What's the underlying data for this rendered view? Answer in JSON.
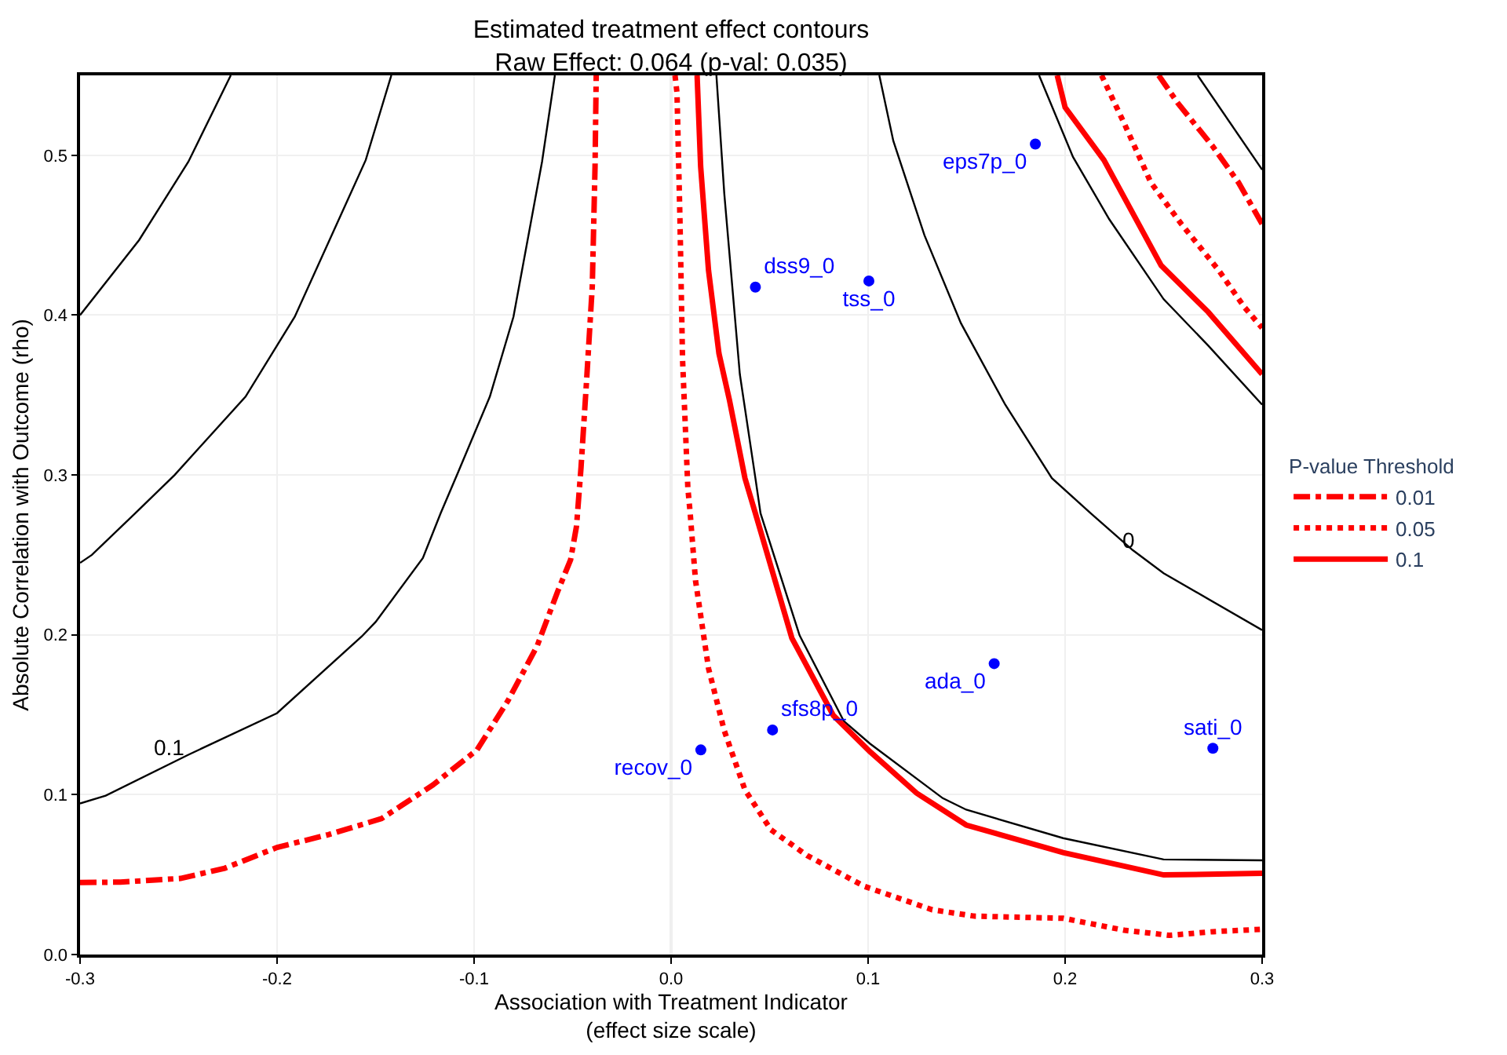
{
  "chart_data": {
    "type": "line",
    "title": "Estimated treatment effect contours",
    "subtitle": "Raw Effect: 0.064 (p-val: 0.035)",
    "xlabel": "Association with Treatment Indicator\n(effect size scale)",
    "ylabel": "Absolute Correlation with Outcome (rho)",
    "legend_title": "P-value Threshold",
    "xlim": [
      -0.3,
      0.3
    ],
    "ylim": [
      0,
      0.55
    ],
    "xticks": [
      -0.3,
      -0.2,
      -0.1,
      {
        "value": 0,
        "label": "0.0"
      },
      0.1,
      0.2,
      0.3
    ],
    "yticks": [
      {
        "value": 0,
        "label": "0.0"
      },
      0.1,
      0.2,
      0.3,
      0.4,
      0.5
    ],
    "grid": true,
    "legend": "right",
    "ref_lines": [
      {
        "axis": "x",
        "value": 0,
        "color": "#aaaaaa"
      }
    ],
    "annotations": [
      {
        "text": "0.1",
        "x": -0.25,
        "y": 0.119
      },
      {
        "text": "0",
        "x": 0.237,
        "y": 0.248
      }
    ],
    "series": [
      {
        "color": "#000000",
        "x": [
          -0.3,
          -0.27,
          -0.245,
          -0.2235
        ],
        "values": [
          0.4,
          0.447,
          0.496,
          0.55
        ]
      },
      {
        "color": "#000000",
        "x": [
          -0.3,
          -0.294,
          -0.272,
          -0.252,
          -0.216,
          -0.191,
          -0.155,
          -0.142
        ],
        "values": [
          0.245,
          0.25,
          0.276,
          0.3,
          0.349,
          0.399,
          0.497,
          0.55
        ]
      },
      {
        "color": "#000000",
        "x": [
          -0.3,
          -0.287,
          -0.245,
          -0.2,
          -0.157,
          -0.15,
          -0.126,
          -0.117,
          -0.108,
          -0.092,
          -0.08,
          -0.0655,
          -0.059
        ],
        "values": [
          0.0945,
          0.0994,
          0.125,
          0.151,
          0.199,
          0.208,
          0.248,
          0.276,
          0.302,
          0.349,
          0.399,
          0.496,
          0.55
        ]
      },
      {
        "color": "#000000",
        "x": [
          0.023,
          0.027,
          0.0349,
          0.0428,
          0.0454,
          0.0652,
          0.0877,
          0.1009,
          0.1379,
          0.1498,
          0.199,
          0.25,
          0.3
        ],
        "values": [
          0.55,
          0.476,
          0.363,
          0.298,
          0.276,
          0.1997,
          0.146,
          0.132,
          0.0978,
          0.0906,
          0.0728,
          0.0595,
          0.0589
        ]
      },
      {
        "color": "#000000",
        "x": [
          0.1057,
          0.1128,
          0.1286,
          0.1471,
          0.1696,
          0.1933,
          0.213,
          0.2343,
          0.25,
          0.3
        ],
        "values": [
          0.55,
          0.509,
          0.45,
          0.395,
          0.344,
          0.298,
          0.276,
          0.253,
          0.2385,
          0.203
        ]
      },
      {
        "color": "#000000",
        "x": [
          0.1868,
          0.204,
          0.2224,
          0.25,
          0.2726,
          0.3
        ],
        "values": [
          0.55,
          0.499,
          0.46,
          0.41,
          0.381,
          0.344
        ]
      },
      {
        "color": "#000000",
        "x": [
          0.2673,
          0.3
        ],
        "values": [
          0.55,
          0.491
        ]
      },
      {
        "name": "0.01",
        "color": "#ff0000",
        "line_style": "dashdot",
        "x": [
          -0.3,
          -0.2795,
          -0.249,
          -0.2266,
          -0.2,
          -0.174,
          -0.147,
          -0.121,
          -0.0985,
          -0.0827,
          -0.068,
          -0.0576,
          -0.051,
          -0.048,
          -0.0457,
          -0.043,
          -0.04,
          -0.0386,
          -0.038,
          null,
          0.2475,
          0.257,
          0.275,
          0.288,
          0.3
        ],
        "values": [
          0.045,
          0.0453,
          0.0476,
          0.054,
          0.067,
          0.075,
          0.085,
          0.106,
          0.128,
          0.159,
          0.193,
          0.227,
          0.247,
          0.268,
          0.305,
          0.357,
          0.418,
          0.493,
          0.55,
          null,
          0.55,
          0.533,
          0.5055,
          0.483,
          0.457
        ]
      },
      {
        "name": "0.05",
        "color": "#ff0000",
        "line_style": "dotted",
        "x": [
          0.002,
          0.003,
          0.0045,
          0.0058,
          0.0085,
          0.0097,
          0.0124,
          0.019,
          0.027,
          0.0375,
          0.0507,
          0.069,
          0.098,
          0.1326,
          0.154,
          0.199,
          0.23,
          0.253,
          0.275,
          0.3,
          null,
          0.2185,
          0.23,
          0.2435,
          0.259,
          0.278,
          0.291,
          0.3
        ],
        "values": [
          0.55,
          0.539,
          0.46,
          0.373,
          0.292,
          0.276,
          0.234,
          0.179,
          0.14,
          0.103,
          0.078,
          0.062,
          0.0427,
          0.028,
          0.024,
          0.0227,
          0.0152,
          0.012,
          0.0143,
          0.0158,
          null,
          0.55,
          0.52,
          0.483,
          0.457,
          0.428,
          0.405,
          0.392
        ]
      },
      {
        "name": "0.1",
        "color": "#ff0000",
        "line_style": "solid",
        "x": [
          0.0132,
          0.015,
          0.019,
          0.0243,
          0.0296,
          0.0375,
          0.0428,
          0.0613,
          0.0824,
          0.1009,
          0.1246,
          0.1498,
          0.199,
          0.25,
          0.3,
          null,
          0.196,
          0.2,
          0.2197,
          0.2488,
          0.2726,
          0.3
        ],
        "values": [
          0.55,
          0.493,
          0.428,
          0.376,
          0.347,
          0.298,
          0.276,
          0.198,
          0.1495,
          0.127,
          0.101,
          0.081,
          0.0638,
          0.0498,
          0.0508,
          null,
          0.55,
          0.53,
          0.497,
          0.431,
          0.402,
          0.363
        ]
      },
      {
        "type": "scatter",
        "color": "#0000ff",
        "marker": "circle",
        "x": [
          0.0151,
          0.0515,
          0.0428,
          0.1004,
          0.1849,
          0.164,
          0.275
        ],
        "values": [
          0.128,
          0.1405,
          0.4175,
          0.4214,
          0.507,
          0.182,
          0.129
        ],
        "value_labels": [
          "recov_0",
          "sfs8p_0",
          "dss9_0",
          "tss_0",
          "eps7p_0",
          "ada_0",
          "sati_0"
        ]
      }
    ]
  }
}
